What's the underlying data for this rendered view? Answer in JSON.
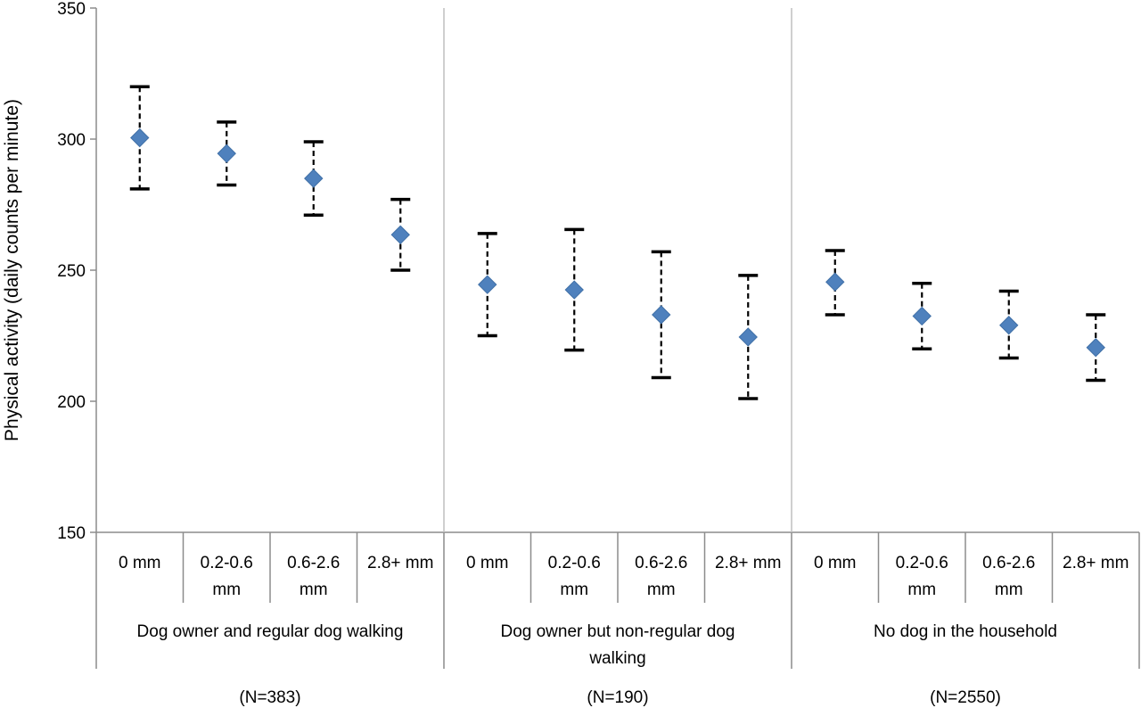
{
  "chart_data": {
    "type": "scatter",
    "title": "",
    "xlabel": "",
    "ylabel": "Physical activity (daily counts per minute)",
    "ylim": [
      150,
      350
    ],
    "yticks": [
      150,
      200,
      250,
      300,
      350
    ],
    "grid": false,
    "legend": "none",
    "error_bars": "dashed",
    "marker": "diamond",
    "marker_color": "#4F81BD",
    "groups": [
      {
        "label": "Dog owner and regular dog walking",
        "n_label": "(N=383)",
        "categories": [
          {
            "label_lines": [
              "0 mm"
            ],
            "value": 300.5,
            "low": 281,
            "high": 320
          },
          {
            "label_lines": [
              "0.2-0.6",
              "mm"
            ],
            "value": 294.5,
            "low": 282.5,
            "high": 306.5
          },
          {
            "label_lines": [
              "0.6-2.6",
              "mm"
            ],
            "value": 285,
            "low": 271,
            "high": 299
          },
          {
            "label_lines": [
              "2.8+ mm"
            ],
            "value": 263.5,
            "low": 250,
            "high": 277
          }
        ]
      },
      {
        "label": "Dog owner but non-regular dog walking",
        "label_lines": [
          "Dog owner but non-regular dog",
          "walking"
        ],
        "n_label": "(N=190)",
        "categories": [
          {
            "label_lines": [
              "0 mm"
            ],
            "value": 244.5,
            "low": 225,
            "high": 264
          },
          {
            "label_lines": [
              "0.2-0.6",
              "mm"
            ],
            "value": 242.5,
            "low": 219.5,
            "high": 265.5
          },
          {
            "label_lines": [
              "0.6-2.6",
              "mm"
            ],
            "value": 233,
            "low": 209,
            "high": 257
          },
          {
            "label_lines": [
              "2.8+ mm"
            ],
            "value": 224.5,
            "low": 201,
            "high": 248
          }
        ]
      },
      {
        "label": "No dog in the household",
        "n_label": "(N=2550)",
        "categories": [
          {
            "label_lines": [
              "0 mm"
            ],
            "value": 245.5,
            "low": 233,
            "high": 257.5
          },
          {
            "label_lines": [
              "0.2-0.6",
              "mm"
            ],
            "value": 232.5,
            "low": 220,
            "high": 245
          },
          {
            "label_lines": [
              "0.6-2.6",
              "mm"
            ],
            "value": 229,
            "low": 216.5,
            "high": 242
          },
          {
            "label_lines": [
              "2.8+ mm"
            ],
            "value": 220.5,
            "low": 208,
            "high": 233
          }
        ]
      }
    ]
  }
}
